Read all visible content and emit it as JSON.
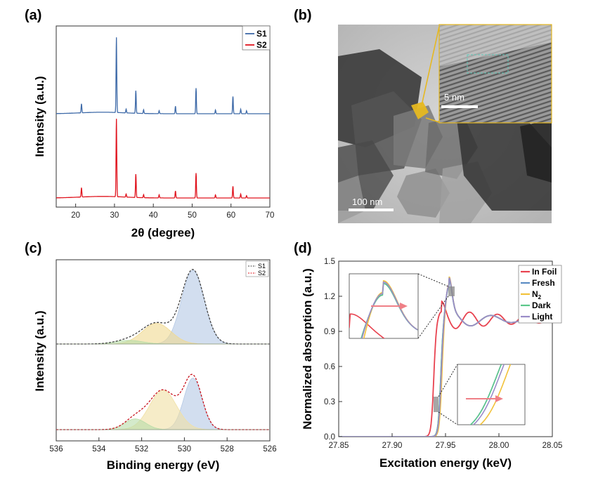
{
  "panels": {
    "a": {
      "label": "(a)",
      "xlabel": "2θ (degree)",
      "ylabel": "Intensity (a.u.)",
      "xticks": [
        "20",
        "30",
        "40",
        "50",
        "60",
        "70"
      ],
      "legend": [
        "S1",
        "S2"
      ],
      "colors": {
        "S1": "#3e6aa8",
        "S2": "#e0141e"
      }
    },
    "b": {
      "label": "(b)",
      "scale_main": "100 nm",
      "scale_inset": "5 nm"
    },
    "c": {
      "label": "(c)",
      "xlabel": "Binding energy (eV)",
      "ylabel": "Intensity (a.u.)",
      "xticks": [
        "536",
        "534",
        "532",
        "530",
        "528",
        "526"
      ],
      "legend": [
        "S1",
        "S2"
      ]
    },
    "d": {
      "label": "(d)",
      "xlabel": "Excitation energy (keV)",
      "ylabel": "Normalized absorption (a.u.)",
      "xticks": [
        "27.85",
        "27.90",
        "27.95",
        "28.00",
        "28.05"
      ],
      "yticks": [
        "0.0",
        "0.3",
        "0.6",
        "0.9",
        "1.2",
        "1.5"
      ],
      "legend": [
        "In Foil",
        "Fresh",
        "N2",
        "Dark",
        "Light"
      ],
      "legend_n2": {
        "main": "N",
        "sub": "2"
      },
      "colors": {
        "In Foil": "#e8424f",
        "Fresh": "#5b8cc4",
        "N2": "#f2c23a",
        "Dark": "#5cc78a",
        "Light": "#9a8cc8"
      }
    }
  },
  "chart_data": [
    {
      "type": "line",
      "panel": "a",
      "title": "",
      "xlabel": "2θ (degree)",
      "ylabel": "Intensity (a.u.)",
      "xlim": [
        15,
        70
      ],
      "series": [
        {
          "name": "S1",
          "peaks": [
            [
              21.5,
              0.12
            ],
            [
              30.5,
              1.0
            ],
            [
              33.0,
              0.05
            ],
            [
              35.5,
              0.3
            ],
            [
              37.5,
              0.05
            ],
            [
              41.5,
              0.04
            ],
            [
              45.7,
              0.1
            ],
            [
              51.0,
              0.34
            ],
            [
              56.0,
              0.05
            ],
            [
              60.5,
              0.23
            ],
            [
              62.5,
              0.06
            ],
            [
              64.0,
              0.04
            ]
          ]
        },
        {
          "name": "S2",
          "peaks": [
            [
              21.5,
              0.12
            ],
            [
              30.5,
              1.0
            ],
            [
              33.0,
              0.04
            ],
            [
              35.5,
              0.3
            ],
            [
              37.5,
              0.04
            ],
            [
              41.5,
              0.04
            ],
            [
              45.7,
              0.09
            ],
            [
              51.0,
              0.32
            ],
            [
              56.0,
              0.04
            ],
            [
              60.5,
              0.15
            ],
            [
              62.5,
              0.05
            ],
            [
              64.0,
              0.03
            ]
          ]
        }
      ]
    },
    {
      "type": "area",
      "panel": "c",
      "xlabel": "Binding energy (eV)",
      "ylabel": "Intensity (a.u.)",
      "xlim": [
        536,
        526
      ],
      "series": [
        {
          "name": "S1",
          "components": [
            {
              "center": 529.6,
              "amp": 1.0,
              "width": 0.75,
              "color": "#b4c8e4"
            },
            {
              "center": 531.3,
              "amp": 0.28,
              "width": 0.95,
              "color": "#f0d890"
            },
            {
              "center": 532.6,
              "amp": 0.05,
              "width": 0.9,
              "color": "#b8dca8"
            }
          ]
        },
        {
          "name": "S2",
          "components": [
            {
              "center": 529.6,
              "amp": 0.72,
              "width": 0.6,
              "color": "#b4c8e4"
            },
            {
              "center": 531.0,
              "amp": 0.55,
              "width": 0.9,
              "color": "#f0e0a4"
            },
            {
              "center": 532.3,
              "amp": 0.15,
              "width": 0.7,
              "color": "#b8dca8"
            }
          ]
        }
      ]
    },
    {
      "type": "line",
      "panel": "d",
      "xlabel": "Excitation energy (keV)",
      "ylabel": "Normalized absorption (a.u.)",
      "xlim": [
        27.85,
        28.05
      ],
      "ylim": [
        0,
        1.5
      ],
      "series": [
        {
          "name": "In Foil",
          "edge": 27.939,
          "peak": [
            27.946,
            1.07
          ]
        },
        {
          "name": "Fresh",
          "edge": 27.9455,
          "peak": [
            27.953,
            1.28
          ]
        },
        {
          "name": "N2",
          "edge": 27.9465,
          "peak": [
            27.953,
            1.3
          ]
        },
        {
          "name": "Dark",
          "edge": 27.9455,
          "peak": [
            27.953,
            1.28
          ]
        },
        {
          "name": "Light",
          "edge": 27.9458,
          "peak": [
            27.953,
            1.29
          ]
        }
      ]
    }
  ]
}
